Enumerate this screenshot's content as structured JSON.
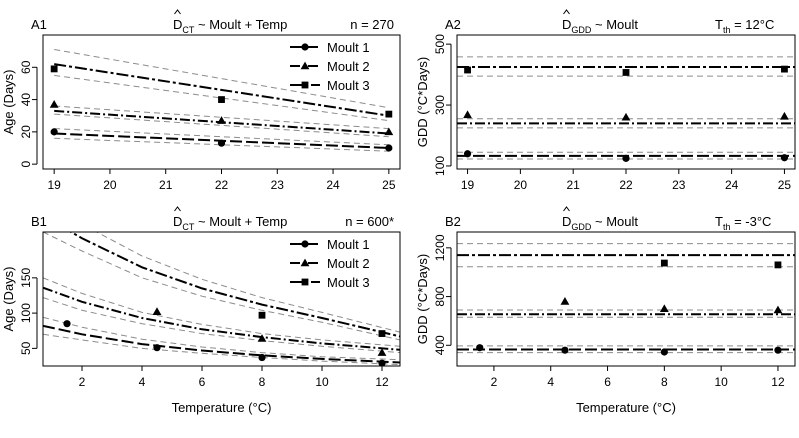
{
  "x_axis_label": "Temperature (°C)",
  "legend_labels": [
    "Moult 1",
    "Moult 2",
    "Moult 3"
  ],
  "chart_data": [
    {
      "type": "scatter",
      "panel": "A1",
      "title_lead": "D",
      "title_sub": "CT",
      "title_rest": " ~ Moult + Temp",
      "annotation": "n = 270",
      "xlabel": "",
      "ylabel": "Age (Days)",
      "xlim": [
        18.8,
        25.2
      ],
      "ylim": [
        -3,
        80
      ],
      "xticks": [
        19,
        20,
        21,
        22,
        23,
        24,
        25
      ],
      "yticks": [
        0,
        20,
        40,
        60
      ],
      "x": [
        19,
        22,
        25
      ],
      "series": [
        {
          "name": "Moult 1",
          "marker": "circle",
          "points": [
            20,
            13,
            10
          ],
          "fit_x": [
            19,
            25
          ],
          "fit": [
            19,
            10
          ],
          "ci_lo": [
            16,
            8
          ],
          "ci_hi": [
            22,
            12
          ]
        },
        {
          "name": "Moult 2",
          "marker": "triangle",
          "points": [
            37,
            27,
            20
          ],
          "fit_x": [
            19,
            25
          ],
          "fit": [
            33,
            19
          ],
          "ci_lo": [
            31,
            17
          ],
          "ci_hi": [
            36,
            22
          ]
        },
        {
          "name": "Moult 3",
          "marker": "square",
          "points": [
            59,
            40,
            31
          ],
          "fit_x": [
            19,
            25
          ],
          "fit": [
            62,
            30
          ],
          "ci_lo": [
            55,
            27
          ],
          "ci_hi": [
            71,
            35
          ]
        }
      ]
    },
    {
      "type": "scatter",
      "panel": "A2",
      "title_lead": "D",
      "title_sub": "GDD",
      "title_rest": " ~ Moult",
      "annotation": "T",
      "annotation_sub": "th",
      "annotation_rest": " =  12°C",
      "xlabel": "",
      "ylabel": "GDD (°C*Days)",
      "xlim": [
        18.8,
        25.2
      ],
      "ylim": [
        90,
        530
      ],
      "xticks": [
        19,
        20,
        21,
        22,
        23,
        24,
        25
      ],
      "yticks": [
        100,
        300,
        500
      ],
      "x": [
        19,
        22,
        25
      ],
      "series": [
        {
          "name": "Moult 1",
          "marker": "circle",
          "points": [
            140,
            125,
            127
          ],
          "fit": 133,
          "ci_lo": 123,
          "ci_hi": 145
        },
        {
          "name": "Moult 2",
          "marker": "triangle",
          "points": [
            268,
            260,
            263
          ],
          "fit": 240,
          "ci_lo": 225,
          "ci_hi": 255
        },
        {
          "name": "Moult 3",
          "marker": "square",
          "points": [
            415,
            407,
            418
          ],
          "fit": 425,
          "ci_lo": 395,
          "ci_hi": 458
        }
      ]
    },
    {
      "type": "scatter",
      "panel": "B1",
      "title_lead": "D",
      "title_sub": "CT",
      "title_rest": " ~ Moult + Temp",
      "annotation": "n = 600*",
      "xlabel": "Temperature (°C)",
      "ylabel": "Age (Days)",
      "xlim": [
        0.7,
        12.6
      ],
      "ylim": [
        25,
        215
      ],
      "xticks": [
        2,
        4,
        6,
        8,
        10,
        12
      ],
      "yticks": [
        50,
        100,
        150
      ],
      "x": [
        1.5,
        4.5,
        8,
        12
      ],
      "series": [
        {
          "name": "Moult 1",
          "marker": "circle",
          "points": [
            85,
            51,
            37,
            29
          ],
          "fit_x": [
            0.7,
            2,
            4,
            6,
            8,
            10,
            12.6
          ],
          "fit": [
            82,
            70,
            56,
            47,
            40,
            35,
            30
          ],
          "ci_lo": [
            70,
            62,
            50,
            43,
            37,
            32,
            27
          ],
          "ci_hi": [
            94,
            80,
            63,
            52,
            44,
            38,
            34
          ]
        },
        {
          "name": "Moult 2",
          "marker": "triangle",
          "points": [
            null,
            102,
            64,
            44
          ],
          "fit_x": [
            0.7,
            2,
            4,
            6,
            8,
            10,
            12.6
          ],
          "fit": [
            136,
            116,
            93,
            77,
            66,
            57,
            48
          ],
          "ci_lo": [
            122,
            104,
            85,
            71,
            61,
            53,
            44
          ],
          "ci_hi": [
            150,
            128,
            101,
            84,
            71,
            62,
            53
          ]
        },
        {
          "name": "Moult 3",
          "marker": "square",
          "points": [
            null,
            null,
            97,
            71
          ],
          "fit_x": [
            0.7,
            2,
            4,
            6,
            8,
            10,
            12.6
          ],
          "fit": [
            238,
            206,
            165,
            135,
            112,
            93,
            67
          ],
          "ci_lo": [
            215,
            188,
            150,
            124,
            104,
            87,
            62
          ],
          "ci_hi": [
            265,
            226,
            181,
            148,
            122,
            101,
            73
          ]
        }
      ]
    },
    {
      "type": "scatter",
      "panel": "B2",
      "title_lead": "D",
      "title_sub": "GDD",
      "title_rest": " ~ Moult",
      "annotation": "T",
      "annotation_sub": "th",
      "annotation_rest": " =  -3°C",
      "xlabel": "Temperature (°C)",
      "ylabel": "GDD (°C*Days)",
      "xlim": [
        0.7,
        12.6
      ],
      "ylim": [
        230,
        1330
      ],
      "xticks": [
        2,
        4,
        6,
        8,
        10,
        12
      ],
      "yticks": [
        400,
        800,
        1200
      ],
      "x": [
        1.5,
        4.5,
        8,
        12
      ],
      "series": [
        {
          "name": "Moult 1",
          "marker": "circle",
          "points": [
            380,
            360,
            345,
            360
          ],
          "fit": 365,
          "ci_lo": 340,
          "ci_hi": 395
        },
        {
          "name": "Moult 2",
          "marker": "triangle",
          "points": [
            null,
            760,
            700,
            690
          ],
          "fit": 655,
          "ci_lo": 630,
          "ci_hi": 690
        },
        {
          "name": "Moult 3",
          "marker": "square",
          "points": [
            null,
            null,
            1075,
            1060
          ],
          "fit": 1140,
          "ci_lo": 1045,
          "ci_hi": 1235
        }
      ]
    }
  ]
}
